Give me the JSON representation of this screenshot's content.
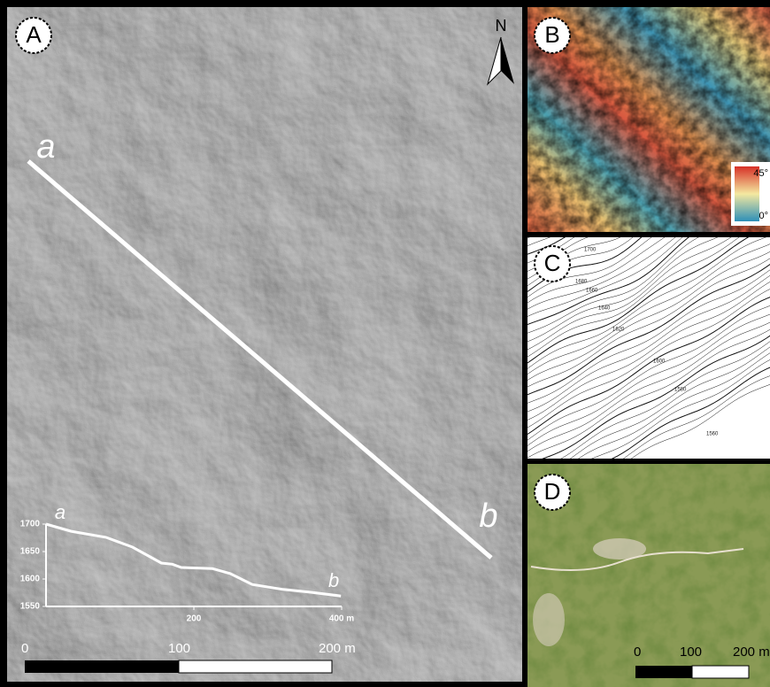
{
  "panel_a": {
    "label": "A",
    "north": "N",
    "transect": {
      "start": "a",
      "end": "b"
    },
    "scale_bar": {
      "labels": [
        "0",
        "100",
        "200 m"
      ]
    }
  },
  "panel_b": {
    "label": "B",
    "legend": {
      "max": "45°",
      "min": "0°"
    }
  },
  "panel_c": {
    "label": "C",
    "contour_labels": [
      "1700",
      "1680",
      "1660",
      "1640",
      "1620",
      "1600",
      "1580",
      "1560"
    ]
  },
  "panel_d": {
    "label": "D",
    "scale_bar": {
      "labels": [
        "0",
        "100",
        "200 m"
      ]
    }
  },
  "chart_data": {
    "type": "line",
    "start_label": "a",
    "end_label": "b",
    "x": [
      0,
      34,
      81,
      117,
      156,
      171,
      183,
      225,
      249,
      279,
      321,
      357,
      399
    ],
    "values": [
      1700,
      1687,
      1676,
      1658,
      1629,
      1627,
      1621,
      1619,
      1610,
      1590,
      1581,
      1576,
      1569
    ],
    "color": "#ffffff",
    "xlim": [
      0,
      400
    ],
    "ylim": [
      1550,
      1700
    ],
    "xticks": [
      200,
      {
        "value": 400,
        "label": "400 m"
      }
    ],
    "yticks": [
      1550,
      1600,
      1650,
      1700
    ]
  }
}
